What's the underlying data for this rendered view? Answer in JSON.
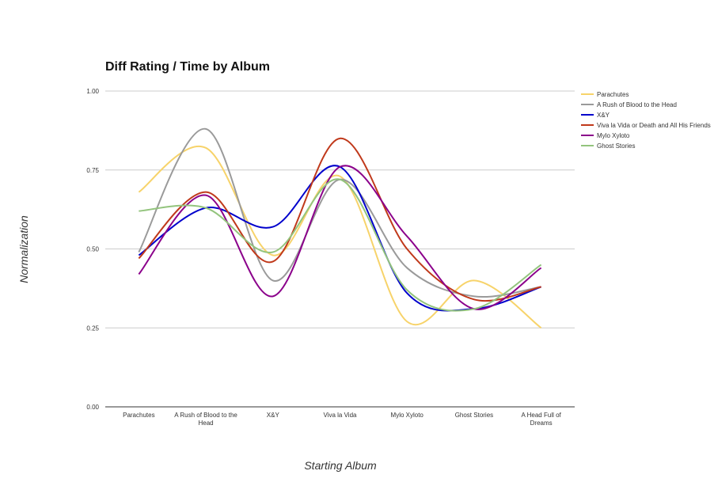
{
  "chart_data": {
    "type": "line",
    "title": "Diff Rating / Time by Album",
    "xlabel": "Starting Album",
    "ylabel": "Normalization",
    "ylim": [
      0,
      1
    ],
    "yticks": [
      "0.00",
      "0.25",
      "0.50",
      "0.75",
      "1.00"
    ],
    "categories": [
      [
        "Parachutes"
      ],
      [
        "A Rush of Blood to the",
        "Head"
      ],
      [
        "X&Y"
      ],
      [
        "Viva la Vida"
      ],
      [
        "Mylo Xyloto"
      ],
      [
        "Ghost Stories"
      ],
      [
        "A Head Full of",
        "Dreams"
      ]
    ],
    "legend_position": "right",
    "grid": true,
    "series": [
      {
        "name": "Parachutes",
        "color": "#f7d36a",
        "values": [
          0.68,
          0.82,
          0.48,
          0.73,
          0.27,
          0.4,
          0.25
        ]
      },
      {
        "name": "A Rush of Blood to the Head",
        "color": "#9a9a9a",
        "values": [
          0.49,
          0.88,
          0.4,
          0.72,
          0.44,
          0.35,
          0.38
        ]
      },
      {
        "name": "X&Y",
        "color": "#0000cc",
        "values": [
          0.48,
          0.63,
          0.57,
          0.76,
          0.36,
          0.31,
          0.38
        ]
      },
      {
        "name": "Viva la Vida or Death and All His Friends",
        "color": "#c0391b",
        "values": [
          0.47,
          0.68,
          0.46,
          0.85,
          0.5,
          0.34,
          0.38
        ]
      },
      {
        "name": "Mylo Xyloto",
        "color": "#8b008b",
        "values": [
          0.42,
          0.67,
          0.35,
          0.76,
          0.54,
          0.31,
          0.44
        ]
      },
      {
        "name": "Ghost Stories",
        "color": "#93c47d",
        "values": [
          0.62,
          0.63,
          0.49,
          0.72,
          0.37,
          0.31,
          0.45
        ]
      }
    ]
  }
}
